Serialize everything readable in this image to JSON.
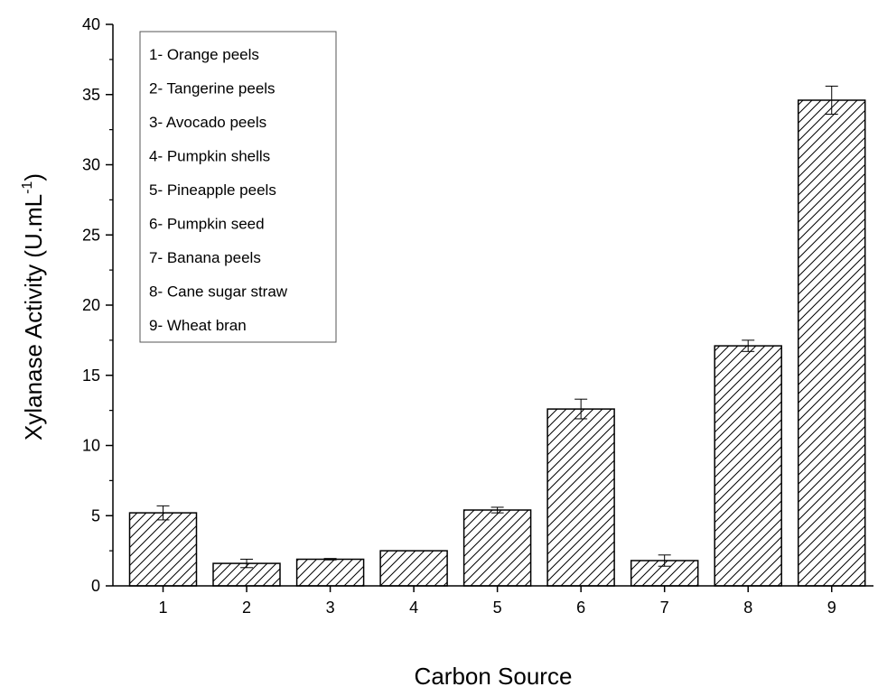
{
  "chart_data": {
    "type": "bar",
    "xlabel": "Carbon Source",
    "ylabel": "Xylanase Activity (U.mL",
    "ylabel_sup": "-1",
    "ylabel_close": ")",
    "ylim": [
      0,
      40
    ],
    "yticks": [
      0,
      5,
      10,
      15,
      20,
      25,
      30,
      35,
      40
    ],
    "categories": [
      "1",
      "2",
      "3",
      "4",
      "5",
      "6",
      "7",
      "8",
      "9"
    ],
    "values": [
      5.2,
      1.6,
      1.9,
      2.5,
      5.4,
      12.6,
      1.8,
      17.1,
      34.6
    ],
    "errors": [
      0.5,
      0.3,
      0.05,
      0,
      0.2,
      0.7,
      0.4,
      0.4,
      1.0
    ],
    "fill": "hatched",
    "legend": [
      "1- Orange peels",
      "2- Tangerine peels",
      "3- Avocado peels",
      "4- Pumpkin shells",
      "5- Pineapple peels",
      "6- Pumpkin seed",
      "7- Banana peels",
      "8- Cane sugar straw",
      "9- Wheat bran"
    ],
    "legend_position": "top-left",
    "grid": false,
    "colors": {
      "bar_stroke": "#000000",
      "hatch": "#000000",
      "background": "#ffffff"
    }
  }
}
